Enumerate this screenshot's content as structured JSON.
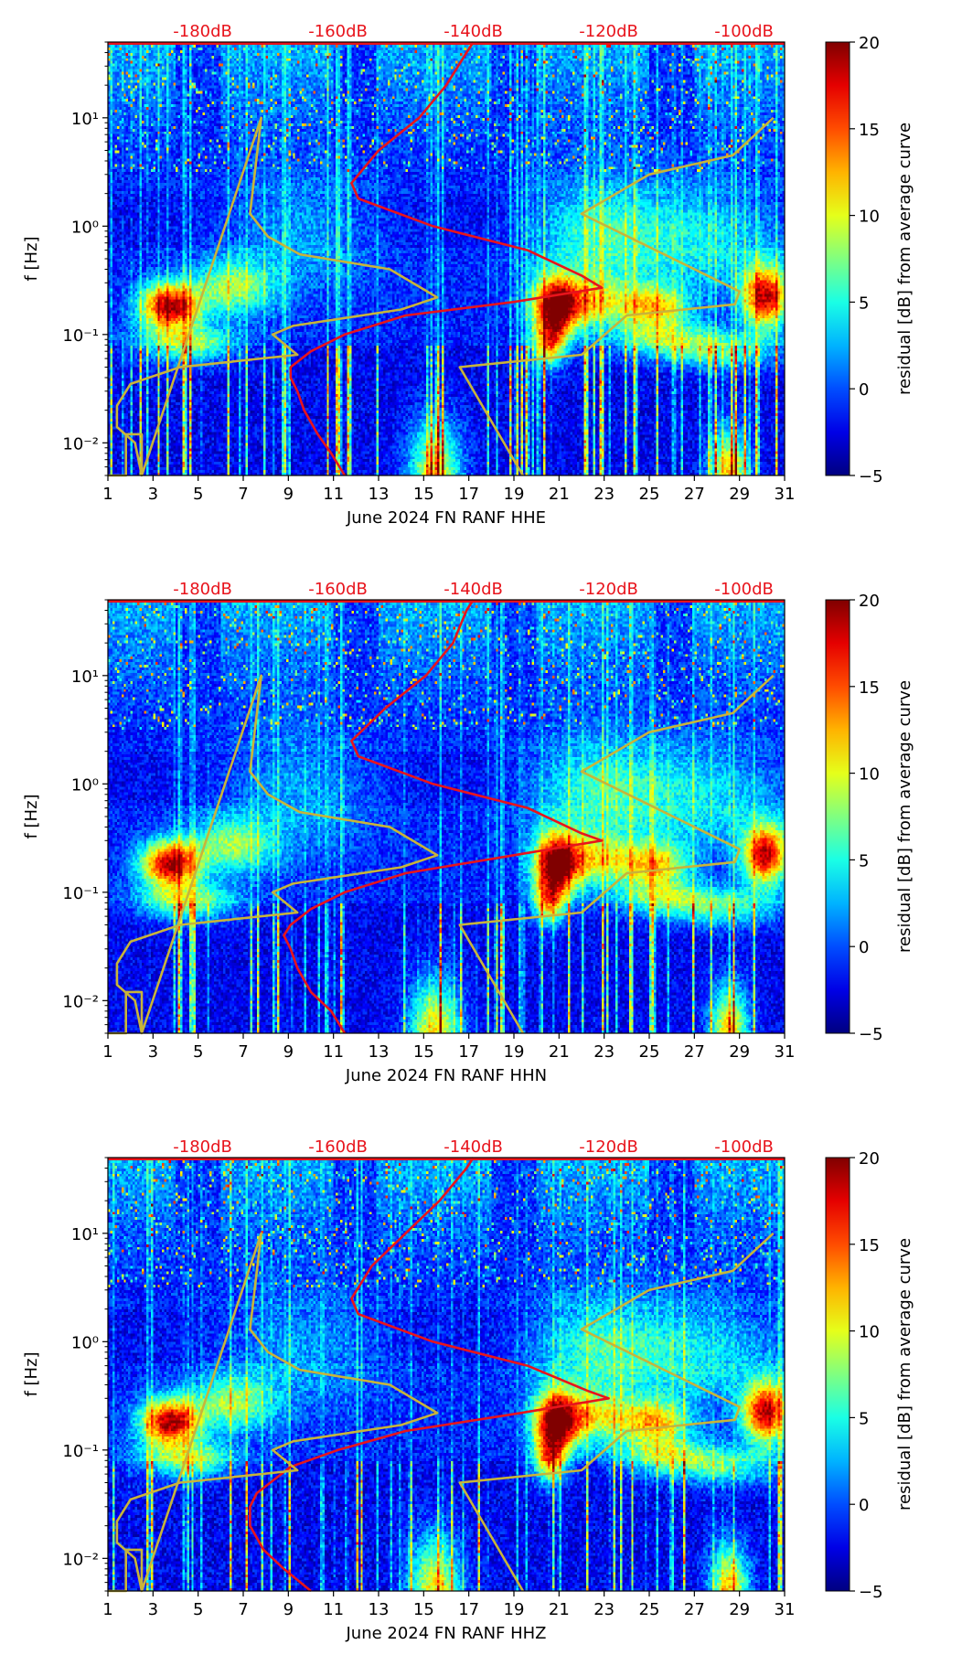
{
  "figure": {
    "ylabel": "f [Hz]",
    "colorbar_label": "residual [dB] from average curve",
    "colorbar_ticks": [
      "20",
      "15",
      "10",
      "5",
      "0",
      "−5"
    ],
    "colorbar_range": [
      -5,
      20
    ],
    "x_ticks": [
      "1",
      "3",
      "5",
      "7",
      "9",
      "11",
      "13",
      "15",
      "17",
      "19",
      "21",
      "23",
      "25",
      "27",
      "29",
      "31"
    ],
    "y_ticks": [
      "10¹",
      "10⁰",
      "10⁻¹",
      "10⁻²"
    ],
    "top_db_ticks": [
      "-180dB",
      "-160dB",
      "-140dB",
      "-120dB",
      "-100dB"
    ],
    "colors": {
      "red_curve": "#e8141c",
      "yellow_curve": "#c8b43a",
      "db_label": "#e8141c"
    }
  },
  "chart_data": [
    {
      "type": "heatmap",
      "title": "June 2024 FN RANF  HHE",
      "xlabel": "June 2024 FN RANF  HHE",
      "ylabel": "f [Hz]",
      "x_range_days": [
        1,
        31
      ],
      "y_range_hz": [
        0.005,
        50
      ],
      "top_axis_db_range": [
        -194,
        -94
      ],
      "colorbar": {
        "label": "residual [dB] from average curve",
        "range": [
          -5,
          20
        ]
      },
      "red_curve_db_vs_freq": {
        "freq_hz": [
          50,
          40,
          20,
          10,
          5,
          2.5,
          1.8,
          1.0,
          0.6,
          0.35,
          0.27,
          0.2,
          0.15,
          0.1,
          0.07,
          0.05,
          0.04,
          0.03,
          0.02,
          0.012,
          0.008,
          0.005
        ],
        "db": [
          -140,
          -141,
          -144,
          -148,
          -154,
          -158,
          -157,
          -146,
          -132,
          -124,
          -121,
          -134,
          -150,
          -159,
          -164,
          -167,
          -167,
          -166,
          -165,
          -163,
          -161,
          -159
        ]
      },
      "yellow_curve_left": {
        "day": [
          1.0,
          1.8,
          1.8,
          2.5,
          2.5,
          7.8,
          7.3,
          8.1,
          9.5,
          13.5,
          15.6,
          14.0,
          9.2,
          8.3,
          9.4,
          4.2,
          2.0,
          1.4,
          1.4,
          2.2,
          2.5
        ],
        "freq_hz": [
          0.005,
          0.005,
          0.012,
          0.012,
          0.005,
          10,
          1.3,
          0.8,
          0.55,
          0.4,
          0.22,
          0.17,
          0.12,
          0.1,
          0.065,
          0.05,
          0.035,
          0.022,
          0.014,
          0.01,
          0.005
        ]
      },
      "yellow_curve_right": {
        "day": [
          19.4,
          16.6,
          22.0,
          24.0,
          28.8,
          29.0,
          22.0,
          25.0,
          28.7,
          30.5
        ],
        "freq_hz": [
          0.005,
          0.05,
          0.065,
          0.15,
          0.19,
          0.25,
          1.3,
          3.0,
          4.5,
          10
        ]
      },
      "noise_scale": 1.0
    },
    {
      "type": "heatmap",
      "title": "June 2024 FN RANF  HHN",
      "xlabel": "June 2024 FN RANF  HHN",
      "ylabel": "f [Hz]",
      "x_range_days": [
        1,
        31
      ],
      "y_range_hz": [
        0.005,
        50
      ],
      "top_axis_db_range": [
        -194,
        -94
      ],
      "colorbar": {
        "label": "residual [dB] from average curve",
        "range": [
          -5,
          20
        ]
      },
      "red_curve_db_vs_freq": {
        "freq_hz": [
          50,
          40,
          20,
          10,
          5,
          2.5,
          1.8,
          1.0,
          0.6,
          0.35,
          0.3,
          0.22,
          0.15,
          0.1,
          0.07,
          0.05,
          0.04,
          0.03,
          0.02,
          0.012,
          0.008,
          0.005
        ],
        "db": [
          -140,
          -141,
          -143,
          -147,
          -153,
          -158,
          -157,
          -146,
          -132,
          -124,
          -121,
          -134,
          -150,
          -159,
          -164,
          -167,
          -168,
          -167,
          -166,
          -164,
          -161,
          -159
        ]
      },
      "yellow_curve_left": {
        "day": [
          1.0,
          1.8,
          1.8,
          2.5,
          2.5,
          7.8,
          7.3,
          8.1,
          9.5,
          13.5,
          15.6,
          14.0,
          9.2,
          8.3,
          9.4,
          4.2,
          2.0,
          1.4,
          1.4,
          2.2,
          2.5
        ],
        "freq_hz": [
          0.005,
          0.005,
          0.012,
          0.012,
          0.005,
          10,
          1.3,
          0.8,
          0.55,
          0.4,
          0.22,
          0.17,
          0.12,
          0.1,
          0.065,
          0.05,
          0.035,
          0.022,
          0.014,
          0.01,
          0.005
        ]
      },
      "yellow_curve_right": {
        "day": [
          19.4,
          16.6,
          22.0,
          24.0,
          28.8,
          29.0,
          22.0,
          25.0,
          28.7,
          30.5
        ],
        "freq_hz": [
          0.005,
          0.05,
          0.065,
          0.15,
          0.19,
          0.25,
          1.3,
          3.0,
          4.5,
          10
        ]
      },
      "noise_scale": 0.95
    },
    {
      "type": "heatmap",
      "title": "June 2024 FN RANF  HHZ",
      "xlabel": "June 2024 FN RANF  HHZ",
      "ylabel": "f [Hz]",
      "x_range_days": [
        1,
        31
      ],
      "y_range_hz": [
        0.005,
        50
      ],
      "top_axis_db_range": [
        -194,
        -94
      ],
      "colorbar": {
        "label": "residual [dB] from average curve",
        "range": [
          -5,
          20
        ]
      },
      "red_curve_db_vs_freq": {
        "freq_hz": [
          50,
          40,
          20,
          10,
          5,
          2.5,
          1.8,
          1.0,
          0.6,
          0.35,
          0.3,
          0.22,
          0.15,
          0.1,
          0.07,
          0.05,
          0.04,
          0.03,
          0.02,
          0.012,
          0.008,
          0.005
        ],
        "db": [
          -140,
          -141,
          -145,
          -150,
          -155,
          -158,
          -157,
          -146,
          -132,
          -123,
          -120,
          -133,
          -150,
          -160,
          -167,
          -170,
          -172,
          -173,
          -173,
          -171,
          -168,
          -164
        ]
      },
      "yellow_curve_left": {
        "day": [
          1.0,
          1.8,
          1.8,
          2.5,
          2.5,
          7.8,
          7.3,
          8.1,
          9.5,
          13.5,
          15.6,
          14.0,
          9.2,
          8.3,
          9.4,
          4.2,
          2.0,
          1.4,
          1.4,
          2.2,
          2.5
        ],
        "freq_hz": [
          0.005,
          0.005,
          0.012,
          0.012,
          0.005,
          10,
          1.3,
          0.8,
          0.55,
          0.4,
          0.22,
          0.17,
          0.12,
          0.1,
          0.065,
          0.05,
          0.035,
          0.022,
          0.014,
          0.01,
          0.005
        ]
      },
      "yellow_curve_right": {
        "day": [
          19.4,
          16.6,
          22.0,
          24.0,
          28.8,
          29.0,
          22.0,
          25.0,
          28.7,
          30.5
        ],
        "freq_hz": [
          0.005,
          0.05,
          0.065,
          0.15,
          0.19,
          0.25,
          1.3,
          3.0,
          4.5,
          10
        ]
      },
      "noise_scale": 1.05
    }
  ]
}
